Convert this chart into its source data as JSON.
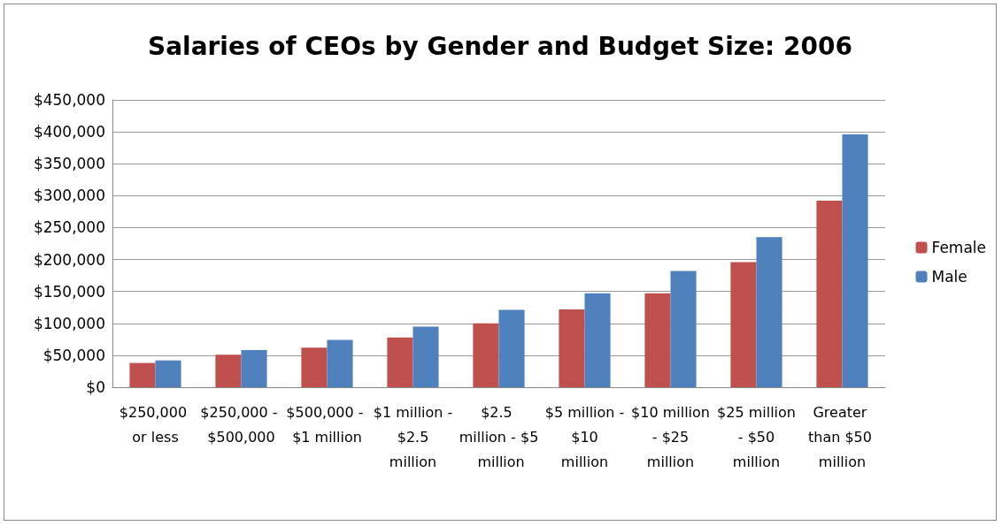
{
  "chart_data": {
    "type": "bar",
    "title": "Salaries of CEOs by Gender and Budget Size: 2006",
    "categories": [
      "$250,000 or less",
      "$250,000 - $500,000",
      "$500,000 - $1 million",
      "$1 million - $2.5 million",
      "$2.5 million - $5 million",
      "$5 million - $10 million",
      "$10 million - $25 million",
      "$25 million - $50 million",
      "Greater than $50 million"
    ],
    "series": [
      {
        "name": "Female",
        "color": "#c0504d",
        "values": [
          38000,
          51000,
          62000,
          78000,
          100000,
          122000,
          147000,
          196000,
          292000
        ]
      },
      {
        "name": "Male",
        "color": "#4f81bd",
        "values": [
          42000,
          58000,
          74000,
          95000,
          121000,
          147000,
          182000,
          235000,
          396000
        ]
      }
    ],
    "ylim": [
      0,
      450000
    ],
    "yticks": [
      {
        "value": 0,
        "label": "$0"
      },
      {
        "value": 50000,
        "label": "$50,000"
      },
      {
        "value": 100000,
        "label": "$100,000"
      },
      {
        "value": 150000,
        "label": "$150,000"
      },
      {
        "value": 200000,
        "label": "$200,000"
      },
      {
        "value": 250000,
        "label": "$250,000"
      },
      {
        "value": 300000,
        "label": "$300,000"
      },
      {
        "value": 350000,
        "label": "$350,000"
      },
      {
        "value": 400000,
        "label": "$400,000"
      },
      {
        "value": 450000,
        "label": "$450,000"
      }
    ],
    "grid": "y",
    "legend": "right"
  }
}
